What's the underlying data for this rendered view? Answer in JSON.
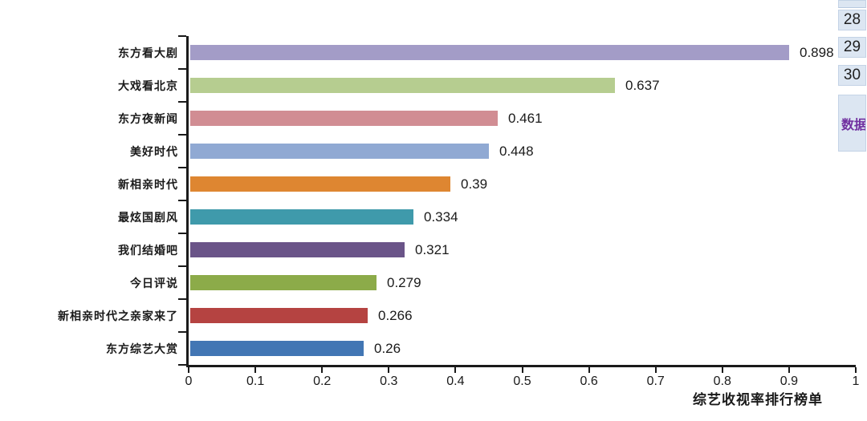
{
  "chart_data": {
    "type": "bar",
    "orientation": "horizontal",
    "title": "",
    "xlabel": "综艺收视率排行榜单",
    "ylabel": "",
    "categories": [
      "东方看大剧",
      "大戏看北京",
      "东方夜新闻",
      "美好时代",
      "新相亲时代",
      "最炫国剧风",
      "我们结婚吧",
      "今日评说",
      "新相亲时代之亲家来了",
      "东方综艺大赏"
    ],
    "values": [
      0.898,
      0.637,
      0.461,
      0.448,
      0.39,
      0.334,
      0.321,
      0.279,
      0.266,
      0.26
    ],
    "value_labels": [
      "0.898",
      "0.637",
      "0.461",
      "0.448",
      "0.39",
      "0.334",
      "0.321",
      "0.279",
      "0.266",
      "0.26"
    ],
    "bar_colors": [
      "#a39cc7",
      "#b6cd90",
      "#d18d93",
      "#90a9d3",
      "#de8631",
      "#3f9aab",
      "#6a5488",
      "#8cab49",
      "#b54341",
      "#4276b4"
    ],
    "xlim": [
      0,
      1
    ],
    "x_ticks": [
      "0",
      "0.1",
      "0.2",
      "0.3",
      "0.4",
      "0.5",
      "0.6",
      "0.7",
      "0.8",
      "0.9",
      "1"
    ],
    "grid": false,
    "legend": null,
    "axis_color": "#1a1a1a",
    "text_color": "#1a1a1a"
  },
  "side_panel": {
    "row_numbers": [
      "28",
      "29",
      "30"
    ],
    "tab_label": "数据",
    "tab_color": "#7030a0",
    "cell_bg": "#dce6f2"
  }
}
